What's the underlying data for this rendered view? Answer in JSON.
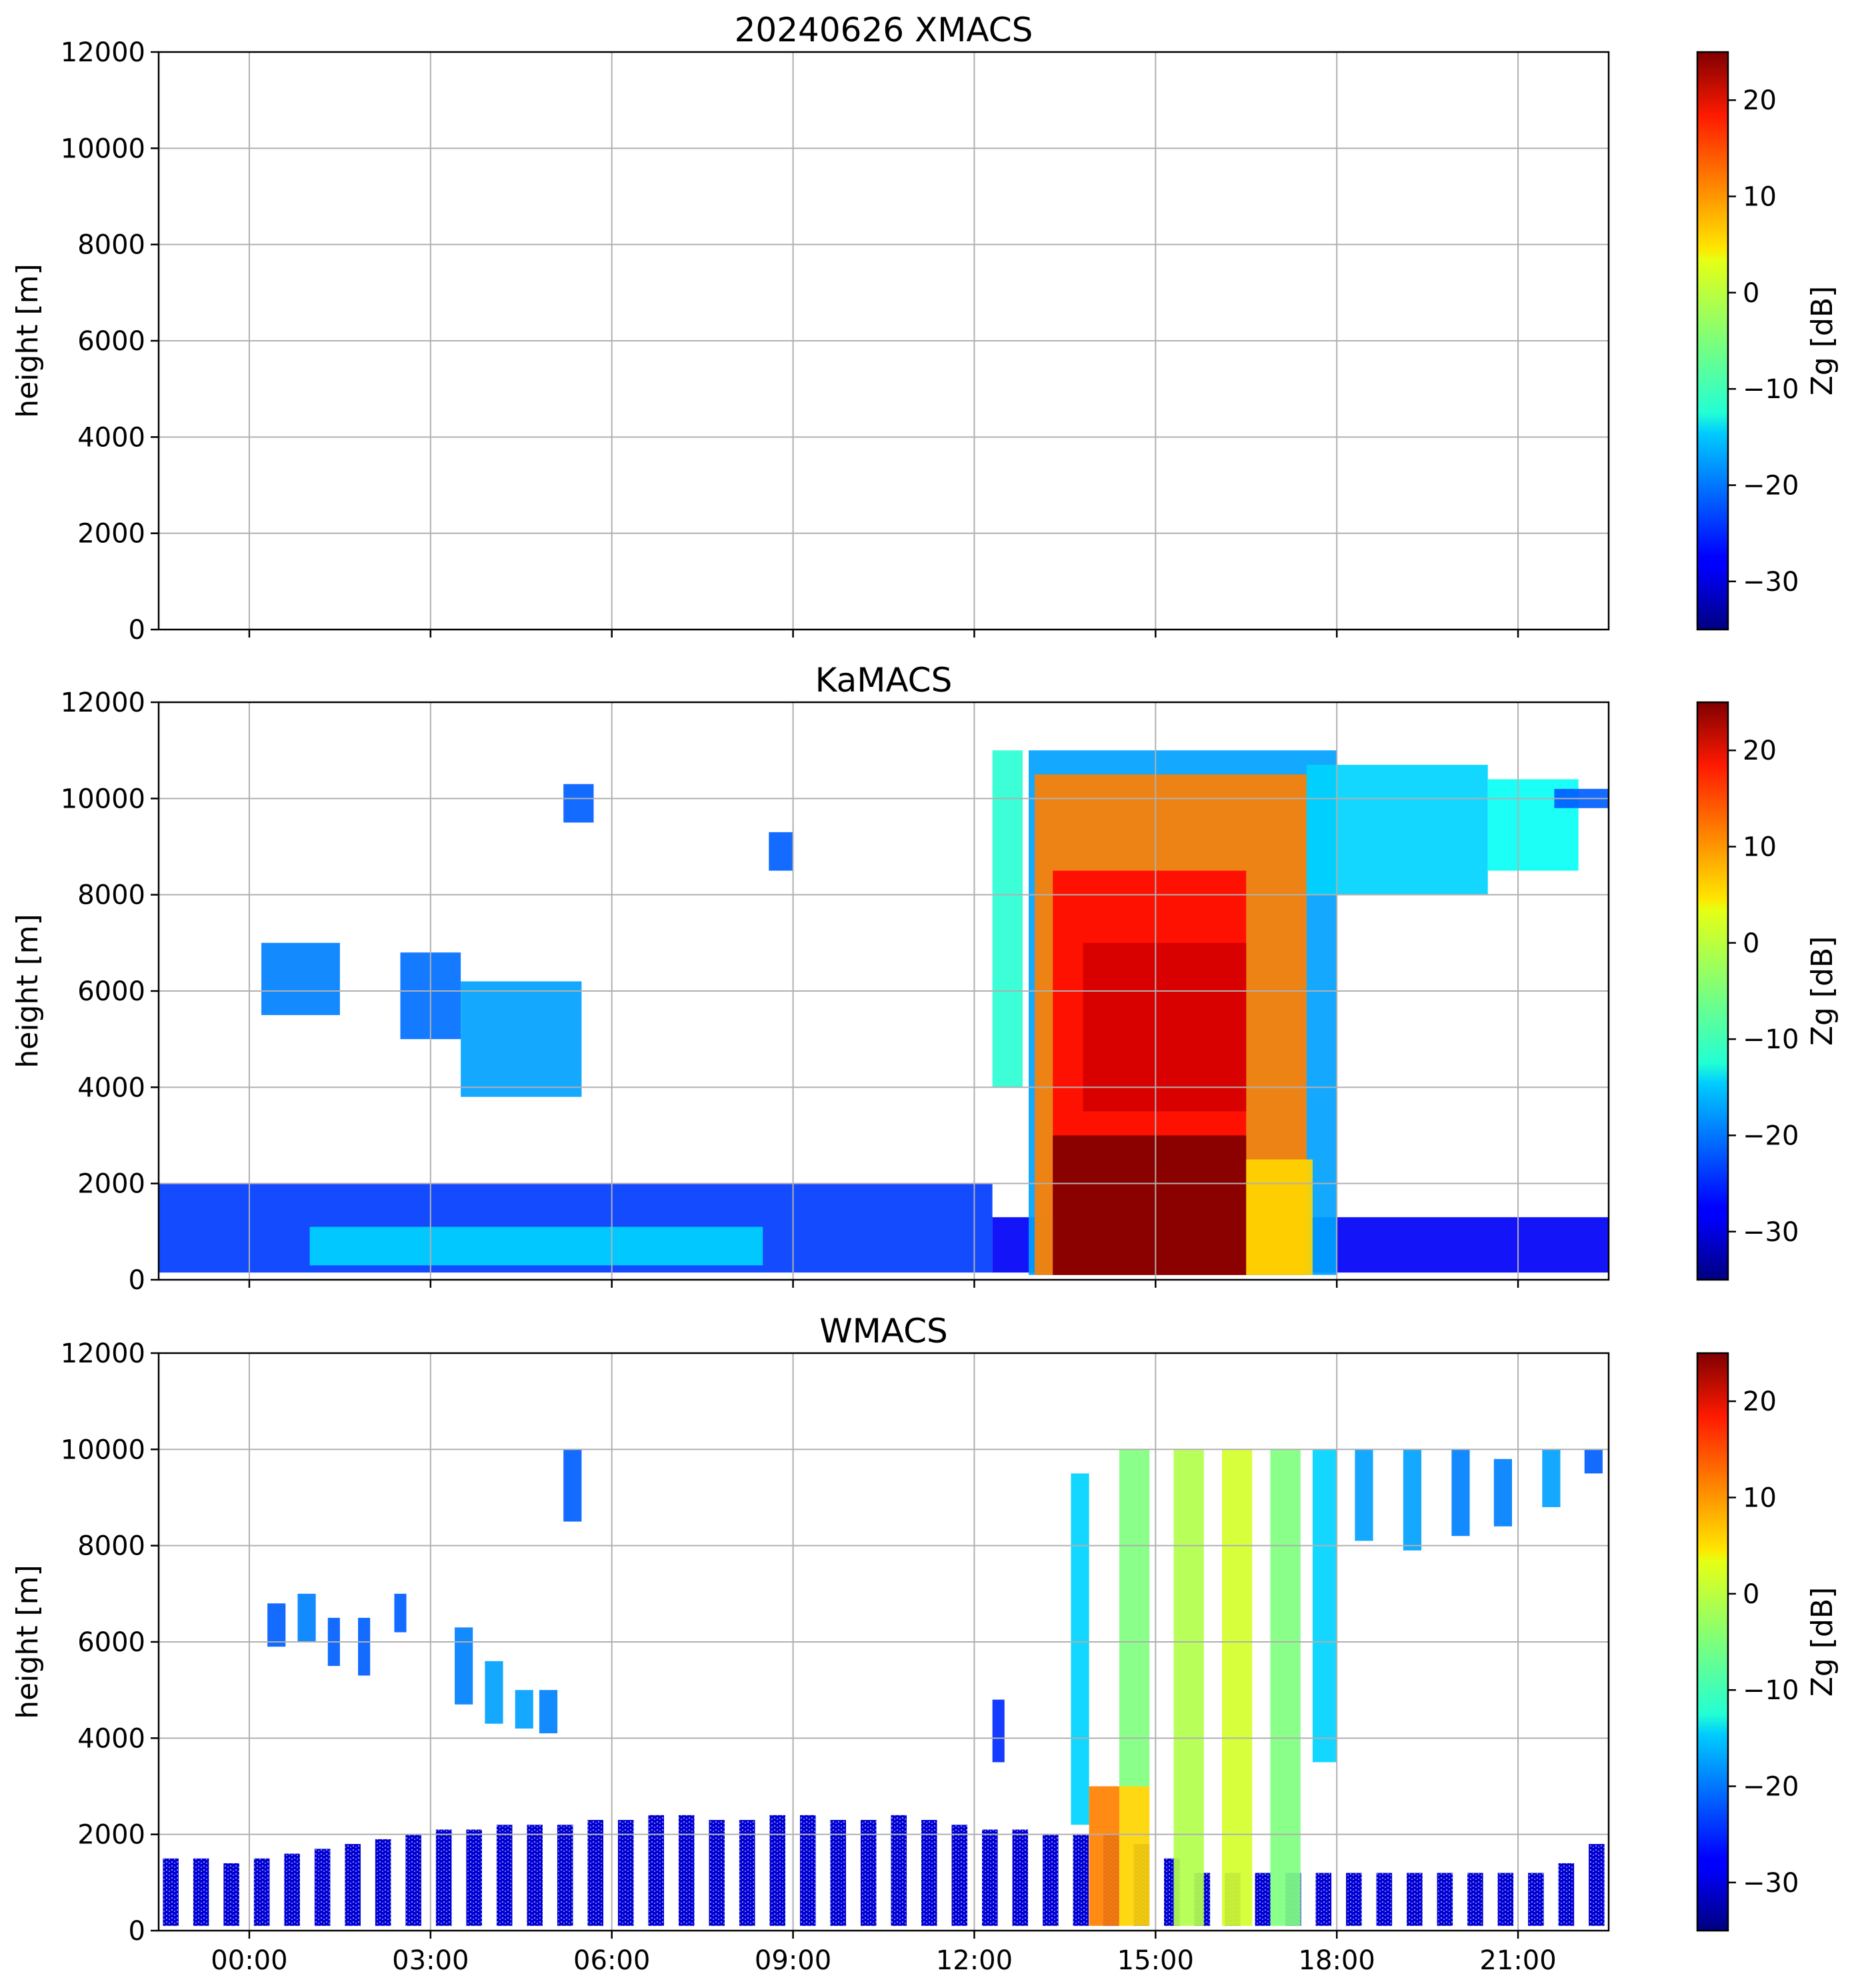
{
  "chart_data": [
    {
      "id": "xmacs",
      "type": "heatmap",
      "title": "20240626 XMACS",
      "ylabel": "height [m]",
      "xlabel": "",
      "xlim_hours": [
        -1.5,
        22.5
      ],
      "ylim": [
        0,
        12000
      ],
      "yticks": [
        0,
        2000,
        4000,
        6000,
        8000,
        10000,
        12000
      ],
      "ytick_labels": [
        "0",
        "2000",
        "4000",
        "6000",
        "8000",
        "10000",
        "12000"
      ],
      "xticks_hours": [
        0,
        3,
        6,
        9,
        12,
        15,
        18,
        21
      ],
      "xtick_labels": [],
      "grid": true,
      "colorbar": {
        "label": "Zg [dB]",
        "range": [
          -35,
          25
        ],
        "ticks": [
          -30,
          -20,
          -10,
          0,
          10,
          20
        ],
        "tick_labels": [
          "−30",
          "−20",
          "−10",
          "0",
          "10",
          "20"
        ]
      },
      "echoes": []
    },
    {
      "id": "kamacs",
      "type": "heatmap",
      "title": "KaMACS",
      "ylabel": "height [m]",
      "xlabel": "",
      "xlim_hours": [
        -1.5,
        22.5
      ],
      "ylim": [
        0,
        12000
      ],
      "yticks": [
        0,
        2000,
        4000,
        6000,
        8000,
        10000,
        12000
      ],
      "ytick_labels": [
        "0",
        "2000",
        "4000",
        "6000",
        "8000",
        "10000",
        "12000"
      ],
      "xticks_hours": [
        0,
        3,
        6,
        9,
        12,
        15,
        18,
        21
      ],
      "xtick_labels": [],
      "grid": true,
      "colorbar": {
        "label": "Zg [dB]",
        "range": [
          -35,
          25
        ],
        "ticks": [
          -30,
          -20,
          -10,
          0,
          10,
          20
        ],
        "tick_labels": [
          "−30",
          "−20",
          "−10",
          "0",
          "10",
          "20"
        ]
      },
      "echoes": [
        {
          "t0": -1.5,
          "t1": 12.3,
          "h0": 150,
          "h1": 2000,
          "dbz": -24
        },
        {
          "t0": 12.3,
          "t1": 22.5,
          "h0": 150,
          "h1": 1300,
          "dbz": -28
        },
        {
          "t0": 1.0,
          "t1": 8.5,
          "h0": 300,
          "h1": 1100,
          "dbz": -15
        },
        {
          "t0": 0.2,
          "t1": 1.5,
          "h0": 5500,
          "h1": 7000,
          "dbz": -20
        },
        {
          "t0": 2.5,
          "t1": 3.5,
          "h0": 5000,
          "h1": 6800,
          "dbz": -21
        },
        {
          "t0": 3.5,
          "t1": 5.5,
          "h0": 3800,
          "h1": 6200,
          "dbz": -18
        },
        {
          "t0": 5.2,
          "t1": 5.7,
          "h0": 9500,
          "h1": 10300,
          "dbz": -22
        },
        {
          "t0": 8.6,
          "t1": 9.0,
          "h0": 8500,
          "h1": 9300,
          "dbz": -22
        },
        {
          "t0": 12.3,
          "t1": 12.8,
          "h0": 4000,
          "h1": 11000,
          "dbz": -10
        },
        {
          "t0": 12.9,
          "t1": 18.0,
          "h0": 100,
          "h1": 11000,
          "dbz": -18
        },
        {
          "t0": 13.0,
          "t1": 17.5,
          "h0": 100,
          "h1": 10500,
          "dbz": 10
        },
        {
          "t0": 13.3,
          "t1": 16.5,
          "h0": 100,
          "h1": 8500,
          "dbz": 17
        },
        {
          "t0": 13.8,
          "t1": 16.5,
          "h0": 3500,
          "h1": 7000,
          "dbz": 20
        },
        {
          "t0": 13.3,
          "t1": 16.5,
          "h0": 100,
          "h1": 3000,
          "dbz": 25
        },
        {
          "t0": 16.5,
          "t1": 17.6,
          "h0": 100,
          "h1": 2500,
          "dbz": 5
        },
        {
          "t0": 17.5,
          "t1": 20.5,
          "h0": 8000,
          "h1": 10700,
          "dbz": -15
        },
        {
          "t0": 20.5,
          "t1": 22.0,
          "h0": 8500,
          "h1": 10400,
          "dbz": -12
        },
        {
          "t0": 21.6,
          "t1": 22.5,
          "h0": 9800,
          "h1": 10200,
          "dbz": -22
        }
      ]
    },
    {
      "id": "wmacs",
      "type": "heatmap",
      "title": "WMACS",
      "ylabel": "height [m]",
      "xlabel": "",
      "xlim_hours": [
        -1.5,
        22.5
      ],
      "ylim": [
        0,
        12000
      ],
      "yticks": [
        0,
        2000,
        4000,
        6000,
        8000,
        10000,
        12000
      ],
      "ytick_labels": [
        "0",
        "2000",
        "4000",
        "6000",
        "8000",
        "10000",
        "12000"
      ],
      "xticks_hours": [
        0,
        3,
        6,
        9,
        12,
        15,
        18,
        21
      ],
      "xtick_labels": [
        "00:00",
        "03:00",
        "06:00",
        "09:00",
        "12:00",
        "15:00",
        "18:00",
        "21:00"
      ],
      "grid": true,
      "colorbar": {
        "label": "Zg [dB]",
        "range": [
          -35,
          25
        ],
        "ticks": [
          -30,
          -20,
          -10,
          0,
          10,
          20
        ],
        "tick_labels": [
          "−30",
          "−20",
          "−10",
          "0",
          "10",
          "20"
        ]
      },
      "echoes": [
        {
          "t0": 0.3,
          "t1": 0.6,
          "h0": 5900,
          "h1": 6800,
          "dbz": -22
        },
        {
          "t0": 0.8,
          "t1": 1.1,
          "h0": 6000,
          "h1": 7000,
          "dbz": -20
        },
        {
          "t0": 1.3,
          "t1": 1.5,
          "h0": 5500,
          "h1": 6500,
          "dbz": -22
        },
        {
          "t0": 1.8,
          "t1": 2.0,
          "h0": 5300,
          "h1": 6500,
          "dbz": -22
        },
        {
          "t0": 2.4,
          "t1": 2.6,
          "h0": 6200,
          "h1": 7000,
          "dbz": -22
        },
        {
          "t0": 3.4,
          "t1": 3.7,
          "h0": 4700,
          "h1": 6300,
          "dbz": -20
        },
        {
          "t0": 3.9,
          "t1": 4.2,
          "h0": 4300,
          "h1": 5600,
          "dbz": -18
        },
        {
          "t0": 4.4,
          "t1": 4.7,
          "h0": 4200,
          "h1": 5000,
          "dbz": -18
        },
        {
          "t0": 4.8,
          "t1": 5.1,
          "h0": 4100,
          "h1": 5000,
          "dbz": -20
        },
        {
          "t0": 5.2,
          "t1": 5.5,
          "h0": 8500,
          "h1": 10000,
          "dbz": -22
        },
        {
          "t0": 12.3,
          "t1": 12.5,
          "h0": 3500,
          "h1": 4800,
          "dbz": -25
        },
        {
          "t0": 13.6,
          "t1": 13.9,
          "h0": 2200,
          "h1": 9500,
          "dbz": -15
        },
        {
          "t0": 13.9,
          "t1": 14.4,
          "h0": 100,
          "h1": 3000,
          "dbz": 10
        },
        {
          "t0": 14.4,
          "t1": 14.9,
          "h0": 3000,
          "h1": 10000,
          "dbz": -5
        },
        {
          "t0": 14.4,
          "t1": 14.9,
          "h0": 100,
          "h1": 3000,
          "dbz": 5
        },
        {
          "t0": 15.3,
          "t1": 15.8,
          "h0": 100,
          "h1": 10000,
          "dbz": -2
        },
        {
          "t0": 16.1,
          "t1": 16.6,
          "h0": 100,
          "h1": 10000,
          "dbz": 0
        },
        {
          "t0": 16.9,
          "t1": 17.4,
          "h0": 100,
          "h1": 10000,
          "dbz": -5
        },
        {
          "t0": 17.6,
          "t1": 18.0,
          "h0": 3500,
          "h1": 10000,
          "dbz": -15
        },
        {
          "t0": 18.3,
          "t1": 18.6,
          "h0": 8100,
          "h1": 10000,
          "dbz": -18
        },
        {
          "t0": 19.1,
          "t1": 19.4,
          "h0": 7900,
          "h1": 10000,
          "dbz": -18
        },
        {
          "t0": 19.9,
          "t1": 20.2,
          "h0": 8200,
          "h1": 10000,
          "dbz": -20
        },
        {
          "t0": 20.6,
          "t1": 20.9,
          "h0": 8400,
          "h1": 9800,
          "dbz": -20
        },
        {
          "t0": 21.4,
          "t1": 21.7,
          "h0": 8800,
          "h1": 10000,
          "dbz": -18
        },
        {
          "t0": 22.1,
          "t1": 22.4,
          "h0": 9500,
          "h1": 10000,
          "dbz": -22
        }
      ],
      "surface_stripes": {
        "start_hour": -1.3,
        "end_hour": 22.3,
        "count": 48,
        "top_heights_m": [
          1500,
          1500,
          1400,
          1500,
          1600,
          1700,
          1800,
          1900,
          2000,
          2100,
          2100,
          2200,
          2200,
          2200,
          2300,
          2300,
          2400,
          2400,
          2300,
          2300,
          2400,
          2400,
          2300,
          2300,
          2400,
          2300,
          2200,
          2100,
          2100,
          2000,
          2000,
          2000,
          1800,
          1500,
          1200,
          1200,
          1200,
          1200,
          1200,
          1200,
          1200,
          1200,
          1200,
          1200,
          1200,
          1200,
          1400,
          1800
        ],
        "dbz": -30
      }
    }
  ]
}
